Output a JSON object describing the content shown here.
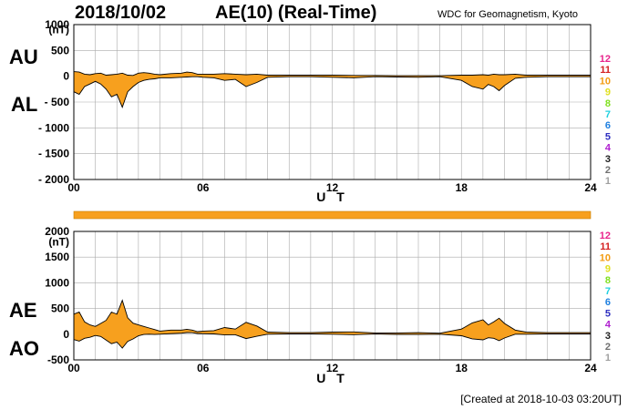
{
  "header": {
    "date": "2018/10/02",
    "title": "AE(10) (Real-Time)",
    "source": "WDC for Geomagnetism, Kyoto"
  },
  "footer": {
    "created": "[Created at 2018-10-03 03:20UT]"
  },
  "station_counts": [
    "12",
    "11",
    "10",
    "9",
    "8",
    "7",
    "6",
    "5",
    "4",
    "3",
    "2",
    "1"
  ],
  "colors": {
    "fill": "#f7a01e",
    "line": "#000000",
    "grid": "#aaaaaa",
    "station_counts": [
      "#e8248c",
      "#d42020",
      "#f39c12",
      "#e0e020",
      "#80e020",
      "#20d0e0",
      "#2080e0",
      "#3030c0",
      "#b020d0",
      "#202020",
      "#707070",
      "#a0a0a0"
    ]
  },
  "chart_data": [
    {
      "type": "area",
      "panel": "AU/AL",
      "labels": {
        "upper": "AU",
        "lower": "AL"
      },
      "xlabel": "U T",
      "xlim": [
        0,
        24
      ],
      "x_ticks": [
        "00",
        "06",
        "12",
        "18",
        "24"
      ],
      "ylim": [
        -2000,
        1000
      ],
      "y_ticks": [
        "1000",
        "(nT)",
        "500",
        "0",
        "- 500",
        "- 1000",
        "- 1500",
        "- 2000"
      ],
      "grid": true,
      "series": [
        {
          "name": "AU",
          "x": [
            0,
            0.25,
            0.5,
            0.75,
            1,
            1.25,
            1.5,
            1.75,
            2,
            2.25,
            2.5,
            2.75,
            3,
            3.25,
            3.5,
            3.75,
            4,
            4.5,
            5,
            5.25,
            5.5,
            5.75,
            6,
            6.5,
            7,
            7.5,
            8,
            8.5,
            9,
            10,
            11,
            12,
            13,
            14,
            15,
            16,
            17,
            18,
            18.5,
            19,
            19.25,
            19.5,
            19.75,
            20,
            20.5,
            21,
            22,
            23,
            24
          ],
          "values": [
            90,
            80,
            40,
            30,
            50,
            60,
            20,
            30,
            40,
            60,
            20,
            15,
            60,
            70,
            60,
            40,
            30,
            50,
            60,
            80,
            70,
            40,
            40,
            40,
            50,
            40,
            30,
            40,
            20,
            20,
            20,
            20,
            15,
            15,
            10,
            10,
            10,
            20,
            20,
            30,
            20,
            40,
            30,
            30,
            40,
            20,
            20,
            20,
            20
          ]
        },
        {
          "name": "AL",
          "x": [
            0,
            0.25,
            0.5,
            0.75,
            1,
            1.25,
            1.5,
            1.75,
            2,
            2.25,
            2.5,
            2.75,
            3,
            3.25,
            3.5,
            3.75,
            4,
            4.5,
            5,
            5.25,
            5.5,
            5.75,
            6,
            6.5,
            7,
            7.5,
            8,
            8.5,
            9,
            10,
            11,
            12,
            13,
            14,
            15,
            16,
            17,
            18,
            18.5,
            19,
            19.25,
            19.5,
            19.75,
            20,
            20.5,
            21,
            22,
            23,
            24
          ],
          "values": [
            -300,
            -350,
            -200,
            -150,
            -100,
            -150,
            -250,
            -400,
            -350,
            -600,
            -300,
            -200,
            -120,
            -80,
            -60,
            -50,
            -30,
            -30,
            -20,
            -15,
            -10,
            -10,
            -20,
            -30,
            -80,
            -60,
            -200,
            -120,
            -20,
            -10,
            -10,
            -20,
            -30,
            -10,
            -15,
            -20,
            -10,
            -80,
            -200,
            -250,
            -160,
            -200,
            -280,
            -180,
            -40,
            -20,
            -10,
            -10,
            -10
          ]
        }
      ]
    },
    {
      "type": "area",
      "panel": "AE/AO",
      "labels": {
        "upper": "AE",
        "lower": "AO"
      },
      "xlabel": "U T",
      "xlim": [
        0,
        24
      ],
      "x_ticks": [
        "00",
        "06",
        "12",
        "18",
        "24"
      ],
      "ylim": [
        -500,
        2000
      ],
      "y_ticks": [
        "2000",
        "(nT)",
        "1500",
        "1000",
        "500",
        "0",
        "-500"
      ],
      "grid": true,
      "series": [
        {
          "name": "AE",
          "x": [
            0,
            0.25,
            0.5,
            0.75,
            1,
            1.25,
            1.5,
            1.75,
            2,
            2.25,
            2.5,
            2.75,
            3,
            3.25,
            3.5,
            3.75,
            4,
            4.5,
            5,
            5.25,
            5.5,
            5.75,
            6,
            6.5,
            7,
            7.5,
            8,
            8.5,
            9,
            10,
            11,
            12,
            13,
            14,
            15,
            16,
            17,
            18,
            18.5,
            19,
            19.25,
            19.5,
            19.75,
            20,
            20.5,
            21,
            22,
            23,
            24
          ],
          "values": [
            390,
            430,
            240,
            180,
            150,
            210,
            270,
            430,
            390,
            660,
            320,
            215,
            180,
            150,
            120,
            90,
            60,
            80,
            80,
            95,
            80,
            50,
            60,
            70,
            130,
            100,
            230,
            160,
            40,
            30,
            30,
            40,
            45,
            25,
            25,
            30,
            20,
            100,
            220,
            280,
            180,
            240,
            310,
            210,
            80,
            40,
            30,
            30,
            30
          ]
        },
        {
          "name": "AO",
          "x": [
            0,
            0.25,
            0.5,
            0.75,
            1,
            1.25,
            1.5,
            1.75,
            2,
            2.25,
            2.5,
            2.75,
            3,
            3.25,
            3.5,
            3.75,
            4,
            4.5,
            5,
            5.25,
            5.5,
            5.75,
            6,
            6.5,
            7,
            7.5,
            8,
            8.5,
            9,
            10,
            11,
            12,
            13,
            14,
            15,
            16,
            17,
            18,
            18.5,
            19,
            19.25,
            19.5,
            19.75,
            20,
            20.5,
            21,
            22,
            23,
            24
          ],
          "values": [
            -105,
            -135,
            -80,
            -60,
            -25,
            -45,
            -115,
            -185,
            -155,
            -270,
            -140,
            -92,
            -30,
            -5,
            0,
            -5,
            0,
            10,
            20,
            32,
            30,
            15,
            10,
            5,
            -15,
            -10,
            -85,
            -40,
            0,
            5,
            5,
            0,
            -8,
            3,
            -3,
            -5,
            0,
            -30,
            -90,
            -110,
            -70,
            -80,
            -125,
            -75,
            0,
            0,
            5,
            5,
            5
          ]
        }
      ]
    }
  ]
}
